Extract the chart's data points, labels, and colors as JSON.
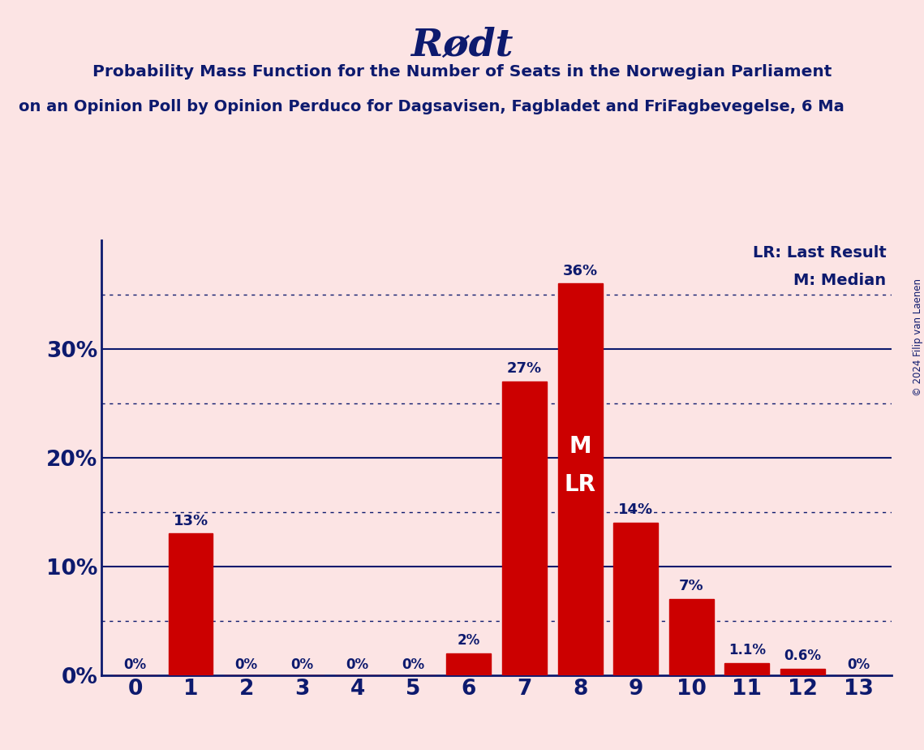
{
  "title": "Rødt",
  "subtitle1": "Probability Mass Function for the Number of Seats in the Norwegian Parliament",
  "subtitle2": "on an Opinion Poll by Opinion Perduco for Dagsavisen, Fagbladet and FriFagbevegelse, 6 Ma",
  "copyright": "© 2024 Filip van Laenen",
  "categories": [
    0,
    1,
    2,
    3,
    4,
    5,
    6,
    7,
    8,
    9,
    10,
    11,
    12,
    13
  ],
  "values": [
    0.0,
    13.0,
    0.0,
    0.0,
    0.0,
    0.0,
    2.0,
    27.0,
    36.0,
    14.0,
    7.0,
    1.1,
    0.6,
    0.0
  ],
  "bar_labels": [
    "0%",
    "13%",
    "0%",
    "0%",
    "0%",
    "0%",
    "2%",
    "27%",
    "36%",
    "14%",
    "7%",
    "1.1%",
    "0.6%",
    "0%"
  ],
  "bar_color": "#cc0000",
  "background_color": "#fce4e4",
  "text_color": "#0d1a6e",
  "yticks": [
    0,
    10,
    20,
    30
  ],
  "ytick_labels": [
    "0%",
    "10%",
    "20%",
    "30%"
  ],
  "dotted_lines": [
    5,
    15,
    25,
    35
  ],
  "ylim": [
    0,
    40
  ],
  "median_bar": 8,
  "last_result_bar": 8,
  "legend_lr": "LR: Last Result",
  "legend_m": "M: Median"
}
